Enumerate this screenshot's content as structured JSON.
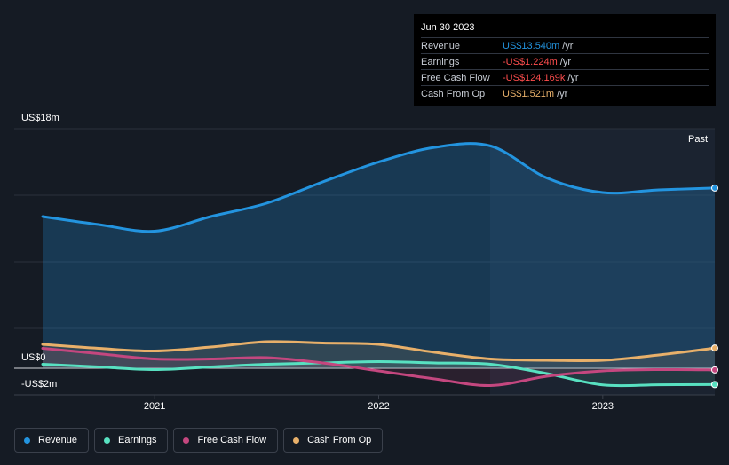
{
  "chart_data": {
    "type": "line",
    "ylabel_top": "US$18m",
    "ylabel_zero": "US$0",
    "ylabel_bottom": "-US$2m",
    "ylim": [
      -2,
      18
    ],
    "x_ticks": [
      {
        "label": "2021",
        "x": 2021.0
      },
      {
        "label": "2022",
        "x": 2022.0
      },
      {
        "label": "2023",
        "x": 2023.0
      }
    ],
    "past_label": "Past",
    "series": [
      {
        "name": "Revenue",
        "color": "#2394df",
        "x": [
          2020.5,
          2020.75,
          2021.0,
          2021.25,
          2021.5,
          2021.75,
          2022.0,
          2022.25,
          2022.5,
          2022.75,
          2023.0,
          2023.25,
          2023.5
        ],
        "values": [
          11.4,
          10.8,
          10.3,
          11.4,
          12.4,
          14.0,
          15.5,
          16.6,
          16.7,
          14.3,
          13.2,
          13.4,
          13.54
        ]
      },
      {
        "name": "Earnings",
        "color": "#58e1c1",
        "x": [
          2020.5,
          2020.75,
          2021.0,
          2021.25,
          2021.5,
          2021.75,
          2022.0,
          2022.25,
          2022.5,
          2022.75,
          2023.0,
          2023.25,
          2023.5
        ],
        "values": [
          0.3,
          0.1,
          -0.1,
          0.1,
          0.3,
          0.4,
          0.5,
          0.4,
          0.3,
          -0.4,
          -1.25,
          -1.24,
          -1.224
        ]
      },
      {
        "name": "Free Cash Flow",
        "color": "#c4477f",
        "x": [
          2020.5,
          2020.75,
          2021.0,
          2021.25,
          2021.5,
          2021.75,
          2022.0,
          2022.25,
          2022.5,
          2022.75,
          2023.0,
          2023.25,
          2023.5
        ],
        "values": [
          1.5,
          1.1,
          0.7,
          0.7,
          0.8,
          0.4,
          -0.2,
          -0.8,
          -1.3,
          -0.6,
          -0.2,
          -0.1,
          -0.124
        ]
      },
      {
        "name": "Cash From Op",
        "color": "#e8b06a",
        "x": [
          2020.5,
          2020.75,
          2021.0,
          2021.25,
          2021.5,
          2021.75,
          2022.0,
          2022.25,
          2022.5,
          2022.75,
          2023.0,
          2023.25,
          2023.5
        ],
        "values": [
          1.8,
          1.5,
          1.3,
          1.6,
          2.0,
          1.9,
          1.8,
          1.2,
          0.7,
          0.6,
          0.6,
          1.0,
          1.521
        ]
      }
    ]
  },
  "tooltip": {
    "date": "Jun 30 2023",
    "rows": [
      {
        "name": "Revenue",
        "value": "US$13.540m",
        "unit": "/yr",
        "color": "#2394df"
      },
      {
        "name": "Earnings",
        "value": "-US$1.224m",
        "unit": "/yr",
        "color": "#ff4d4d"
      },
      {
        "name": "Free Cash Flow",
        "value": "-US$124.169k",
        "unit": "/yr",
        "color": "#ff4d4d"
      },
      {
        "name": "Cash From Op",
        "value": "US$1.521m",
        "unit": "/yr",
        "color": "#e8b06a"
      }
    ]
  },
  "legend": {
    "items": [
      {
        "label": "Revenue",
        "color": "#2394df"
      },
      {
        "label": "Earnings",
        "color": "#58e1c1"
      },
      {
        "label": "Free Cash Flow",
        "color": "#c4477f"
      },
      {
        "label": "Cash From Op",
        "color": "#e8b06a"
      }
    ]
  }
}
